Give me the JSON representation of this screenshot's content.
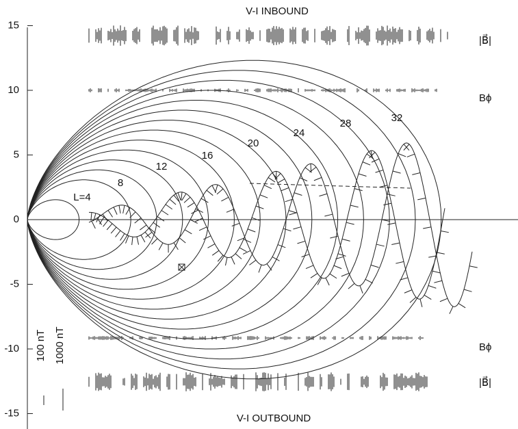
{
  "header": {
    "top_title": "V-I  INBOUND",
    "bottom_title": "V-I  OUTBOUND"
  },
  "y_axis": {
    "ticks": [
      "15",
      "10",
      "5",
      "0",
      "-5",
      "-10",
      "-15"
    ]
  },
  "field_lines": {
    "labels": [
      "L=4",
      "8",
      "12",
      "16",
      "20",
      "24",
      "28",
      "32"
    ]
  },
  "traces": {
    "labels": [
      "|B⃗|",
      "Bϕ",
      "Bϕ",
      "|B⃗|"
    ]
  },
  "scale": {
    "labels": [
      "100 nT",
      "1000 nT"
    ]
  }
}
